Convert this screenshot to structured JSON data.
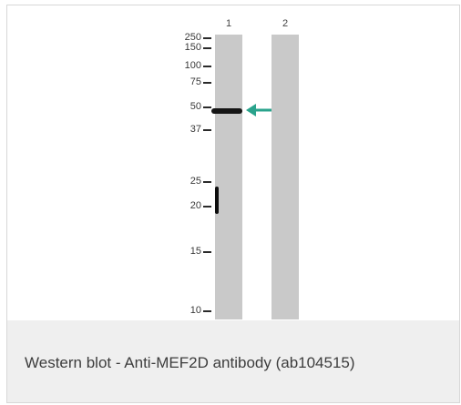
{
  "blot": {
    "lanes": [
      {
        "label": "1"
      },
      {
        "label": "2"
      }
    ],
    "markers": [
      "250",
      "150",
      "100",
      "75",
      "50",
      "37",
      "25",
      "20",
      "15",
      "10"
    ],
    "arrow_color": "#2aa38c",
    "band_color": "#151515",
    "lane_color": "#c9c9c9"
  },
  "caption": "Western blot - Anti-MEF2D antibody (ab104515)",
  "colors": {
    "caption_bg": "#efefef",
    "border": "#d7d7d7"
  }
}
